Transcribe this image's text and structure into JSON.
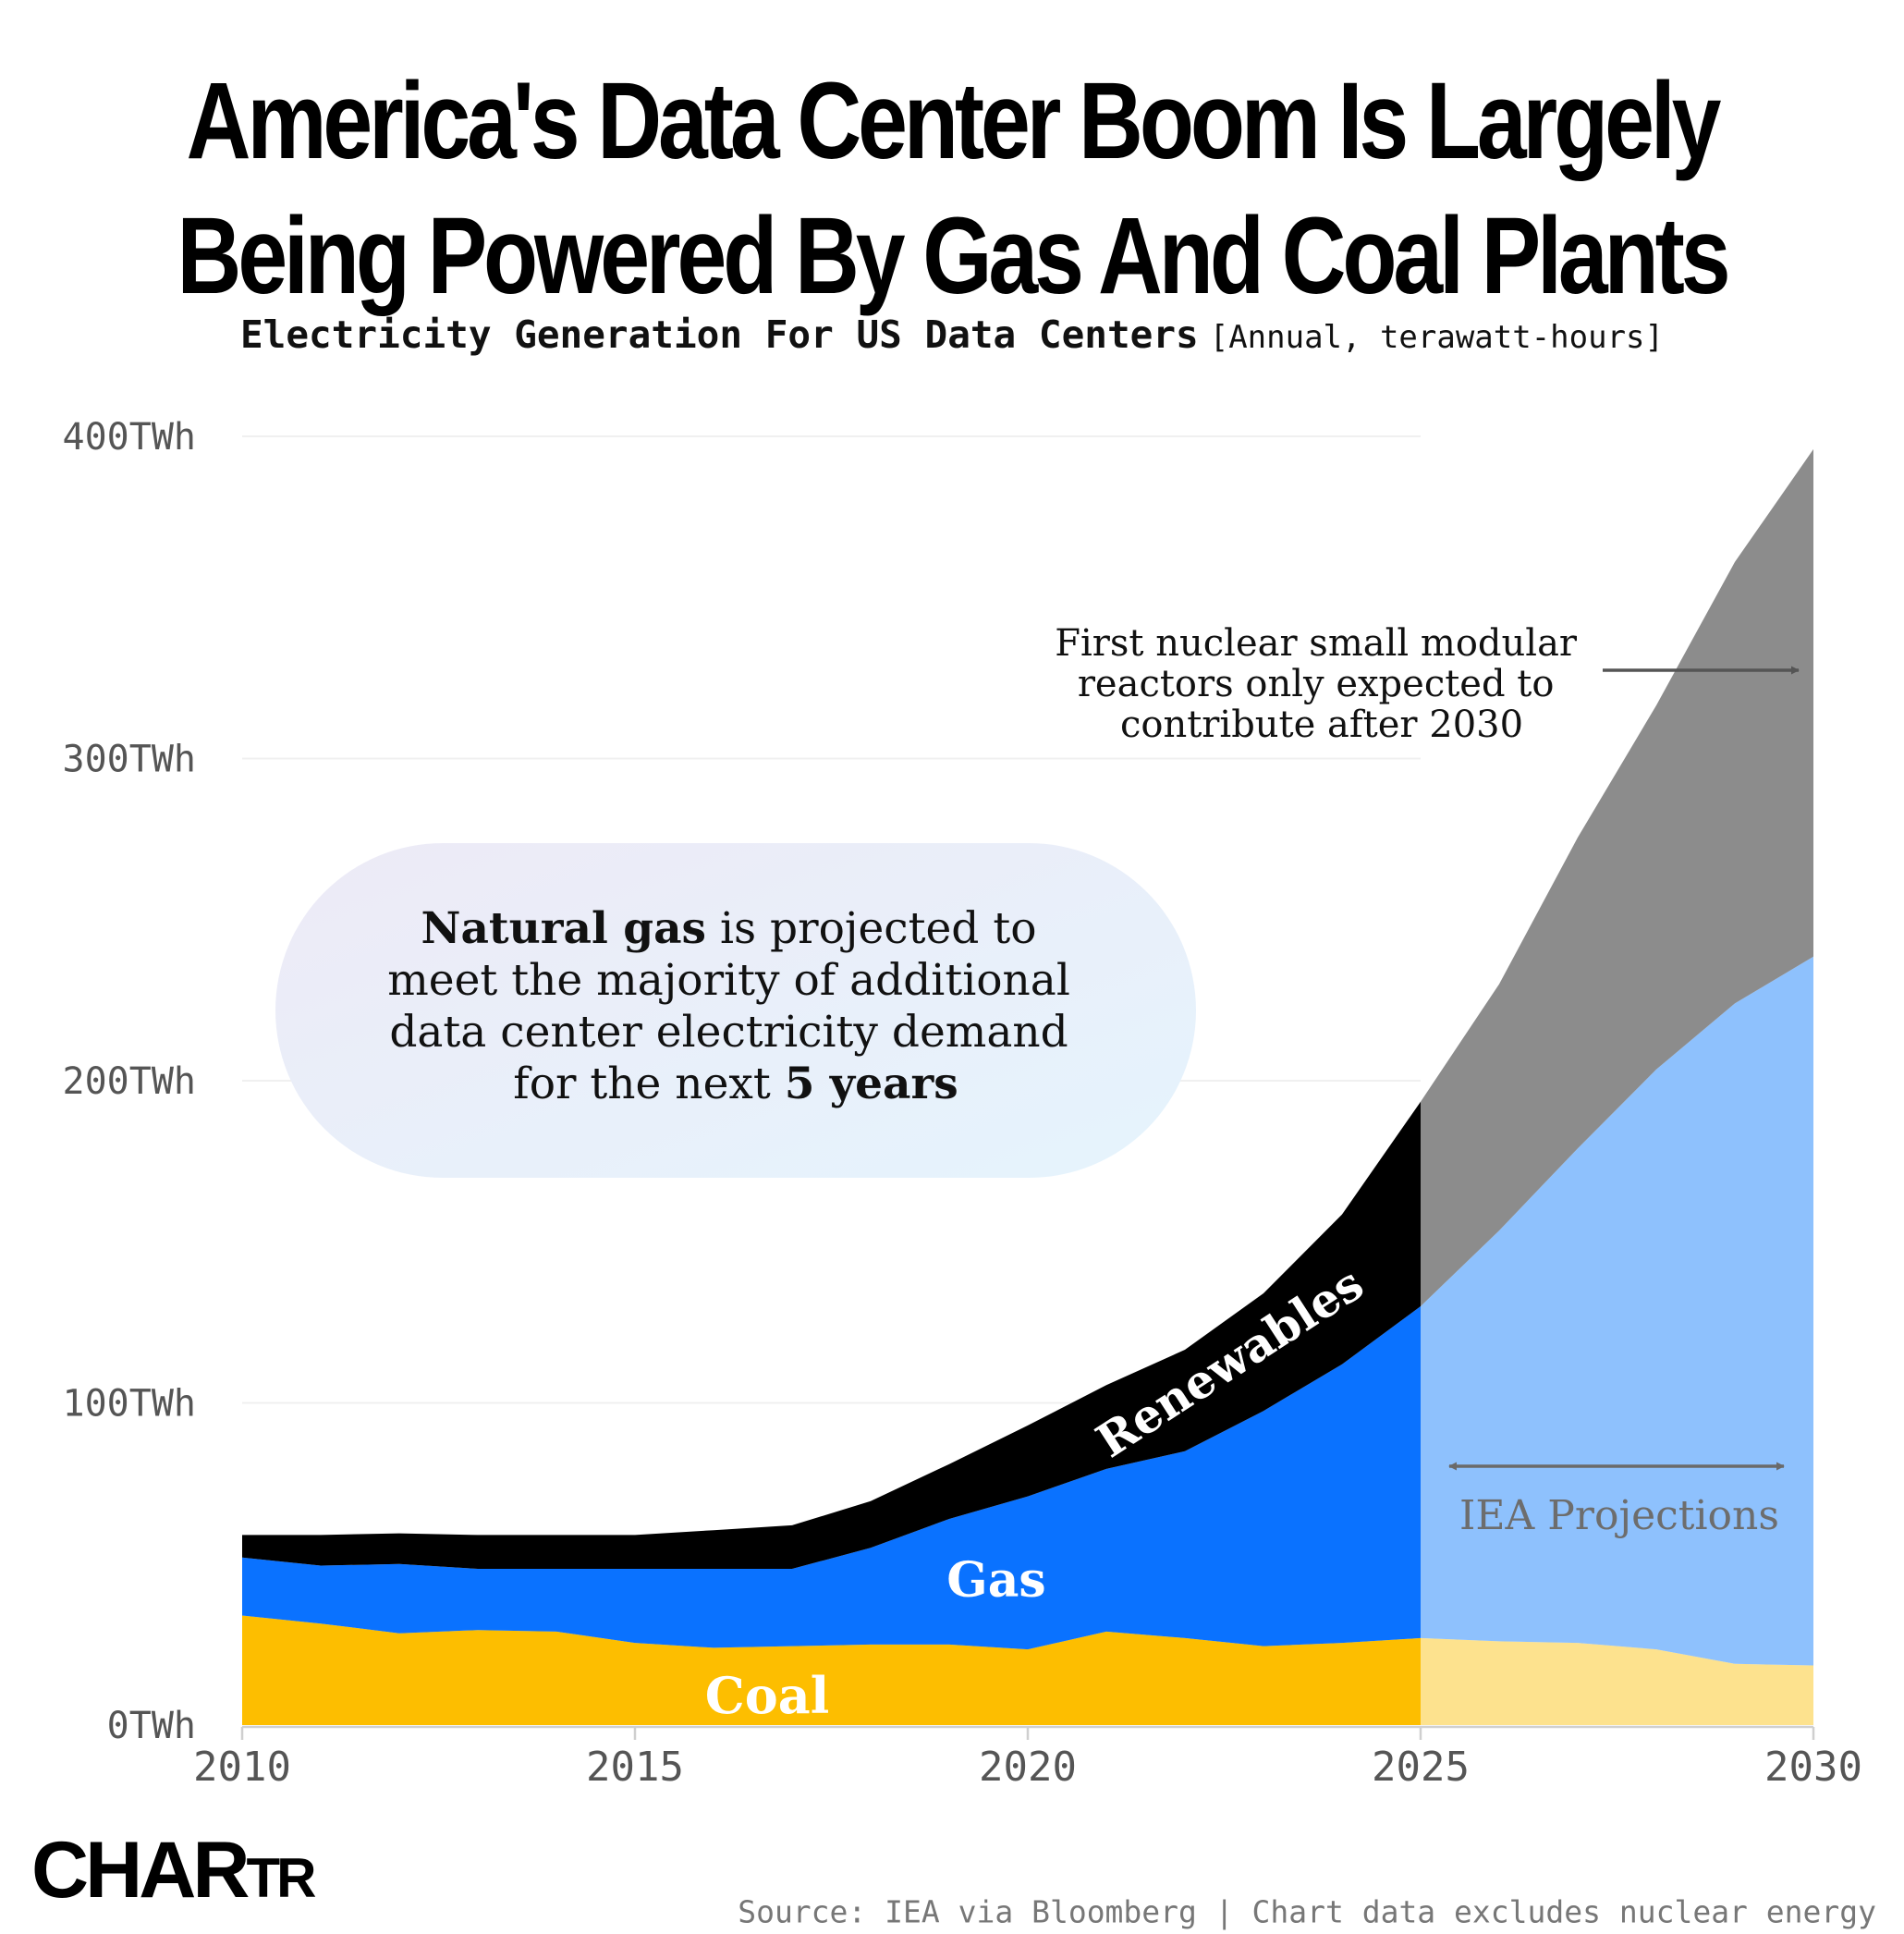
{
  "title_lines": [
    "America's Data Center Boom Is Largely",
    "Being Powered By Gas And Coal Plants"
  ],
  "subtitle_main": "Electricity Generation For US Data Centers",
  "subtitle_unit": "[Annual, terawatt-hours]",
  "logo": {
    "big": "CHAR",
    "small": "TR"
  },
  "source": "Source: IEA via Bloomberg | Chart data excludes nuclear energy",
  "colors": {
    "coal": "#FDBE00",
    "coal_projected": "#FDE28E",
    "gas": "#0A72FF",
    "gas_projected": "#8EC1FD",
    "renewables": "#000000",
    "renewables_projected": "#8C8C8C"
  },
  "chart_data": {
    "type": "area",
    "stacked": true,
    "title": "Electricity Generation For US Data Centers",
    "unit": "terawatt-hours",
    "x": [
      2010,
      2011,
      2012,
      2013,
      2014,
      2015,
      2016,
      2017,
      2018,
      2019,
      2020,
      2021,
      2022,
      2023,
      2024,
      2025,
      2026,
      2027,
      2028,
      2029,
      2030
    ],
    "projection_start": 2025,
    "series": [
      {
        "name": "Coal",
        "label": "Coal",
        "values": [
          34,
          31.5,
          28.5,
          29.5,
          29,
          25.5,
          24,
          24.5,
          25,
          25,
          23.5,
          29,
          27,
          24.5,
          25.5,
          27,
          26,
          25.5,
          23.5,
          19,
          18.5
        ]
      },
      {
        "name": "Gas",
        "label": "Gas",
        "values": [
          18,
          18,
          21.5,
          19,
          19.5,
          23,
          24.5,
          24,
          30,
          39,
          47.5,
          50.5,
          58,
          73,
          86.5,
          103,
          127.5,
          153.5,
          180,
          205,
          220
        ]
      },
      {
        "name": "Renewables",
        "label": "Renewables",
        "values": [
          7,
          9.5,
          9.5,
          10.5,
          10.5,
          10.5,
          12,
          13.5,
          14.5,
          17,
          22,
          26,
          31.5,
          36.5,
          46.5,
          63.5,
          76.5,
          96.5,
          113,
          137,
          157.5
        ]
      }
    ],
    "y_ticks": [
      0,
      100,
      200,
      300,
      400
    ],
    "y_tick_labels": [
      "0TWh",
      "100TWh",
      "200TWh",
      "300TWh",
      "400TWh"
    ],
    "x_ticks": [
      2010,
      2015,
      2020,
      2025,
      2030
    ],
    "x_tick_labels": [
      "2010",
      "2015",
      "2020",
      "2025",
      "2030"
    ],
    "ylim": [
      0,
      400
    ],
    "xlim": [
      2010,
      2030
    ],
    "annotations": {
      "gas_note_bold": "Natural gas",
      "gas_note_rest1": " is projected to",
      "gas_note_line2": "meet the majority of additional",
      "gas_note_line3": "data center electricity demand",
      "gas_note_line4a": "for the next ",
      "gas_note_bold2": "5 years",
      "nuclear_lines": [
        "First nuclear small modular",
        "reactors only expected to",
        "contribute after 2030"
      ],
      "projection_label": "IEA Projections"
    }
  }
}
